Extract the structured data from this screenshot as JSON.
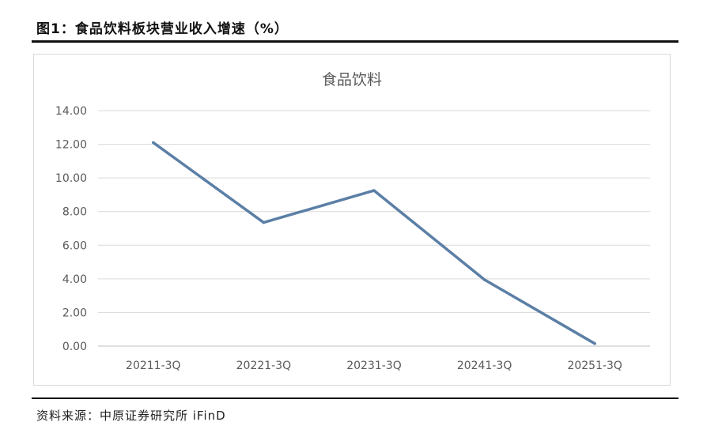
{
  "figure": {
    "title": "图1：食品饮料板块营业收入增速（%）",
    "source": "资料来源：中原证券研究所 iFinD"
  },
  "chart_data": {
    "type": "line",
    "title": "食品饮料",
    "categories": [
      "20211-3Q",
      "20221-3Q",
      "20231-3Q",
      "20241-3Q",
      "20251-3Q"
    ],
    "series": [
      {
        "values": [
          12.1,
          7.35,
          9.25,
          3.95,
          0.15
        ],
        "color": "#5b7fa6"
      }
    ],
    "ylim": [
      0,
      14
    ],
    "yticks": [
      "0.00",
      "2.00",
      "4.00",
      "6.00",
      "8.00",
      "10.00",
      "12.00",
      "14.00"
    ],
    "grid": true,
    "legend": "none"
  }
}
